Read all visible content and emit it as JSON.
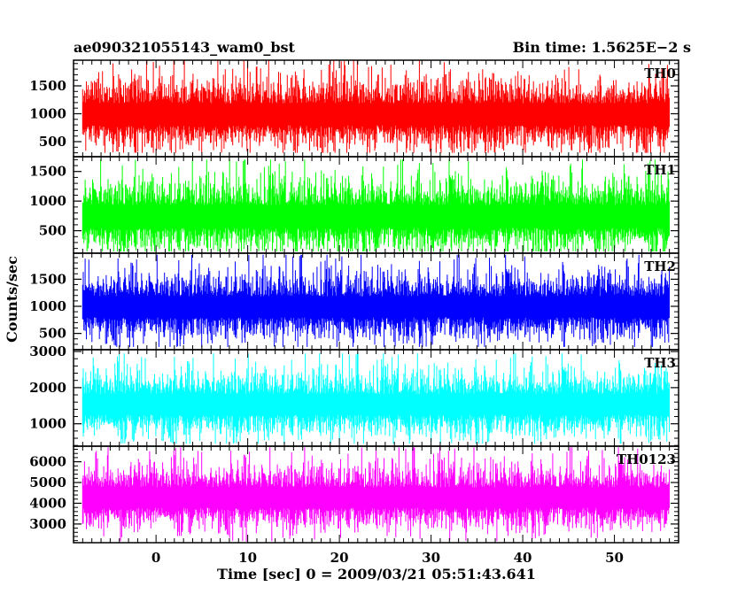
{
  "header": {
    "left_title": "ae090321055143_wam0_bst",
    "right_title": "Bin time: 1.5625E−2 s"
  },
  "chart_data": {
    "type": "line",
    "xlabel": "Time [sec] 0 = 2009/03/21 05:51:43.641",
    "ylabel": "Counts/sec",
    "xlim": [
      -9,
      57
    ],
    "x_ticks": [
      0,
      10,
      20,
      30,
      40,
      50
    ],
    "x_range_data": [
      -8,
      56
    ],
    "panels": [
      {
        "name": "TH0",
        "color": "#ff0000",
        "ylim": [
          230,
          1960
        ],
        "y_ticks": [
          500,
          1000,
          1500
        ],
        "mean": 1000,
        "min": 300,
        "max": 1960
      },
      {
        "name": "TH1",
        "color": "#00ff00",
        "ylim": [
          120,
          1750
        ],
        "y_ticks": [
          500,
          1000,
          1500
        ],
        "mean": 750,
        "min": 150,
        "max": 1700
      },
      {
        "name": "TH2",
        "color": "#0000ff",
        "ylim": [
          200,
          1980
        ],
        "y_ticks": [
          500,
          1000,
          1500
        ],
        "mean": 1000,
        "min": 250,
        "max": 1950
      },
      {
        "name": "TH3",
        "color": "#00ffff",
        "ylim": [
          380,
          3050
        ],
        "y_ticks": [
          1000,
          2000,
          3000
        ],
        "mean": 1550,
        "min": 450,
        "max": 2950
      },
      {
        "name": "TH0123",
        "color": "#ff00ff",
        "ylim": [
          2100,
          6750
        ],
        "y_ticks": [
          3000,
          4000,
          5000,
          6000
        ],
        "mean": 4300,
        "min": 2150,
        "max": 6700
      }
    ]
  }
}
